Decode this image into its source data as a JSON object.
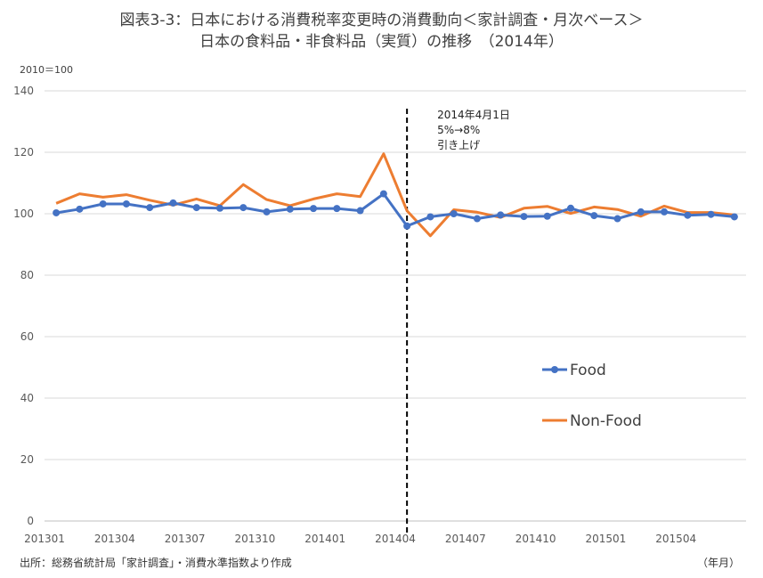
{
  "title_line1": "図表3-3：日本における消費税率変更時の消費動向＜家計調査・月次ベース＞",
  "title_line2": "日本の食料品・非食料品（実質）の推移　（2014年）",
  "unit_label": "2010＝100",
  "source": "出所：総務省統計局「家計調査」・消費水準指数より作成",
  "period_label": "（年月）",
  "colors": {
    "food": "#4472C4",
    "nonfood": "#ED7D31",
    "grid": "#D9D9D9",
    "vline": "#000000"
  },
  "chart_data": {
    "type": "line",
    "ylim": [
      0,
      140
    ],
    "yticks": [
      0,
      20,
      40,
      60,
      80,
      100,
      120,
      140
    ],
    "grid": true,
    "legend_position": "right",
    "x": [
      "201301",
      "201302",
      "201303",
      "201304",
      "201305",
      "201306",
      "201307",
      "201308",
      "201309",
      "201310",
      "201311",
      "201312",
      "201401",
      "201402",
      "201403",
      "201404",
      "201405",
      "201406",
      "201407",
      "201408",
      "201409",
      "201410",
      "201411",
      "201412",
      "201501",
      "201502",
      "201503",
      "201504",
      "201505",
      "201506"
    ],
    "xtick_labels": [
      "201301",
      "201304",
      "201307",
      "201310",
      "201401",
      "201404",
      "201407",
      "201410",
      "201501",
      "201504"
    ],
    "series": [
      {
        "name": "Food",
        "marker": "circle",
        "values": [
          100.3,
          101.5,
          103.2,
          103.2,
          102.0,
          103.5,
          102.0,
          101.8,
          102.0,
          100.6,
          101.5,
          101.7,
          101.7,
          101.0,
          106.5,
          96.0,
          99.0,
          100.0,
          98.4,
          99.6,
          99.1,
          99.2,
          101.8,
          99.4,
          98.4,
          100.6,
          100.6,
          99.5,
          99.8,
          99.0
        ]
      },
      {
        "name": "Non-Food",
        "marker": "none",
        "values": [
          103.4,
          106.5,
          105.4,
          106.2,
          104.4,
          102.8,
          104.8,
          102.6,
          109.5,
          104.6,
          102.6,
          104.8,
          106.5,
          105.6,
          119.5,
          101.0,
          92.8,
          101.3,
          100.5,
          98.8,
          101.8,
          102.4,
          100.1,
          102.2,
          101.4,
          99.2,
          102.5,
          100.4,
          100.4,
          99.6
        ]
      }
    ],
    "annotation": {
      "at_x": "201404",
      "lines": [
        "2014年4月1日",
        "5%→8%",
        "引き上げ"
      ]
    }
  }
}
